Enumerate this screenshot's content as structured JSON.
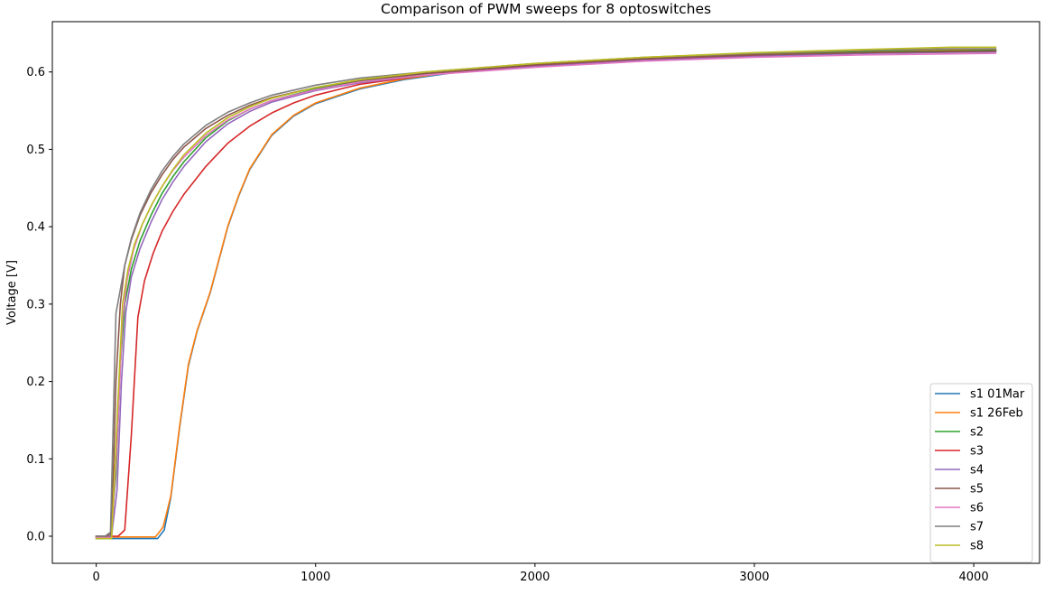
{
  "chart_data": {
    "type": "line",
    "title": "Comparison of PWM sweeps for 8 optoswitches",
    "xlabel": "",
    "ylabel": "Voltage [V]",
    "xlim": [
      -200,
      4300
    ],
    "ylim": [
      -0.035,
      0.665
    ],
    "xticks": [
      0,
      1000,
      2000,
      3000,
      4000
    ],
    "yticks": [
      0.0,
      0.1,
      0.2,
      0.3,
      0.4,
      0.5,
      0.6
    ],
    "ytick_labels": [
      "0.0",
      "0.1",
      "0.2",
      "0.3",
      "0.4",
      "0.5",
      "0.6"
    ],
    "grid": false,
    "legend_position": "lower-right",
    "series": [
      {
        "name": "s1 01Mar",
        "color": "#1f77b4",
        "points": [
          [
            0,
            -0.003
          ],
          [
            280,
            -0.003
          ],
          [
            310,
            0.008
          ],
          [
            340,
            0.05
          ],
          [
            380,
            0.14
          ],
          [
            420,
            0.22
          ],
          [
            460,
            0.265
          ],
          [
            520,
            0.315
          ],
          [
            600,
            0.4
          ],
          [
            650,
            0.44
          ],
          [
            700,
            0.474
          ],
          [
            800,
            0.518
          ],
          [
            900,
            0.543
          ],
          [
            1000,
            0.559
          ],
          [
            1200,
            0.578
          ],
          [
            1400,
            0.59
          ],
          [
            1600,
            0.598
          ],
          [
            2000,
            0.609
          ],
          [
            2500,
            0.617
          ],
          [
            3000,
            0.622
          ],
          [
            3500,
            0.626
          ],
          [
            3900,
            0.628
          ],
          [
            4100,
            0.628
          ]
        ]
      },
      {
        "name": "s1 26Feb",
        "color": "#ff7f0e",
        "points": [
          [
            0,
            -0.001
          ],
          [
            270,
            -0.001
          ],
          [
            305,
            0.012
          ],
          [
            340,
            0.052
          ],
          [
            380,
            0.142
          ],
          [
            420,
            0.222
          ],
          [
            460,
            0.266
          ],
          [
            520,
            0.316
          ],
          [
            600,
            0.401
          ],
          [
            650,
            0.441
          ],
          [
            700,
            0.475
          ],
          [
            800,
            0.519
          ],
          [
            900,
            0.544
          ],
          [
            1000,
            0.56
          ],
          [
            1200,
            0.579
          ],
          [
            1400,
            0.591
          ],
          [
            1600,
            0.599
          ],
          [
            2000,
            0.61
          ],
          [
            2500,
            0.618
          ],
          [
            3000,
            0.623
          ],
          [
            3500,
            0.627
          ],
          [
            3900,
            0.629
          ],
          [
            4100,
            0.629
          ]
        ]
      },
      {
        "name": "s2",
        "color": "#2ca02c",
        "points": [
          [
            0,
            -0.003
          ],
          [
            65,
            -0.003
          ],
          [
            90,
            0.08
          ],
          [
            110,
            0.22
          ],
          [
            130,
            0.3
          ],
          [
            160,
            0.345
          ],
          [
            200,
            0.382
          ],
          [
            250,
            0.415
          ],
          [
            300,
            0.443
          ],
          [
            350,
            0.465
          ],
          [
            400,
            0.484
          ],
          [
            500,
            0.515
          ],
          [
            600,
            0.537
          ],
          [
            700,
            0.552
          ],
          [
            800,
            0.563
          ],
          [
            1000,
            0.578
          ],
          [
            1200,
            0.588
          ],
          [
            1500,
            0.598
          ],
          [
            2000,
            0.609
          ],
          [
            2500,
            0.617
          ],
          [
            3000,
            0.622
          ],
          [
            3500,
            0.626
          ],
          [
            4100,
            0.628
          ]
        ]
      },
      {
        "name": "s3",
        "color": "#d62728",
        "points": [
          [
            0,
            0.0
          ],
          [
            100,
            0.0
          ],
          [
            130,
            0.008
          ],
          [
            160,
            0.13
          ],
          [
            190,
            0.283
          ],
          [
            220,
            0.33
          ],
          [
            260,
            0.366
          ],
          [
            300,
            0.394
          ],
          [
            350,
            0.42
          ],
          [
            400,
            0.442
          ],
          [
            450,
            0.46
          ],
          [
            500,
            0.478
          ],
          [
            600,
            0.508
          ],
          [
            700,
            0.53
          ],
          [
            800,
            0.547
          ],
          [
            900,
            0.56
          ],
          [
            1000,
            0.57
          ],
          [
            1200,
            0.584
          ],
          [
            1500,
            0.596
          ],
          [
            2000,
            0.608
          ],
          [
            2500,
            0.616
          ],
          [
            3000,
            0.621
          ],
          [
            3500,
            0.625
          ],
          [
            4100,
            0.627
          ]
        ]
      },
      {
        "name": "s4",
        "color": "#9467bd",
        "points": [
          [
            0,
            0.0
          ],
          [
            70,
            0.0
          ],
          [
            95,
            0.06
          ],
          [
            115,
            0.2
          ],
          [
            135,
            0.29
          ],
          [
            160,
            0.335
          ],
          [
            200,
            0.372
          ],
          [
            250,
            0.406
          ],
          [
            300,
            0.435
          ],
          [
            350,
            0.458
          ],
          [
            400,
            0.478
          ],
          [
            500,
            0.51
          ],
          [
            600,
            0.533
          ],
          [
            700,
            0.549
          ],
          [
            800,
            0.561
          ],
          [
            1000,
            0.576
          ],
          [
            1200,
            0.586
          ],
          [
            1500,
            0.596
          ],
          [
            2000,
            0.607
          ],
          [
            2500,
            0.615
          ],
          [
            3000,
            0.62
          ],
          [
            3500,
            0.624
          ],
          [
            4100,
            0.626
          ]
        ]
      },
      {
        "name": "s5",
        "color": "#8c564b",
        "points": [
          [
            0,
            0.0
          ],
          [
            45,
            0.0
          ],
          [
            70,
            0.004
          ],
          [
            90,
            0.2
          ],
          [
            110,
            0.3
          ],
          [
            130,
            0.35
          ],
          [
            160,
            0.383
          ],
          [
            200,
            0.415
          ],
          [
            250,
            0.444
          ],
          [
            300,
            0.467
          ],
          [
            350,
            0.487
          ],
          [
            400,
            0.503
          ],
          [
            500,
            0.527
          ],
          [
            600,
            0.544
          ],
          [
            700,
            0.557
          ],
          [
            800,
            0.567
          ],
          [
            1000,
            0.58
          ],
          [
            1200,
            0.589
          ],
          [
            1500,
            0.598
          ],
          [
            2000,
            0.609
          ],
          [
            2500,
            0.617
          ],
          [
            3000,
            0.622
          ],
          [
            3500,
            0.625
          ],
          [
            4100,
            0.627
          ]
        ]
      },
      {
        "name": "s6",
        "color": "#e377c2",
        "points": [
          [
            0,
            -0.002
          ],
          [
            70,
            -0.002
          ],
          [
            95,
            0.12
          ],
          [
            120,
            0.28
          ],
          [
            140,
            0.33
          ],
          [
            170,
            0.37
          ],
          [
            210,
            0.403
          ],
          [
            260,
            0.432
          ],
          [
            300,
            0.452
          ],
          [
            350,
            0.473
          ],
          [
            400,
            0.49
          ],
          [
            500,
            0.518
          ],
          [
            600,
            0.538
          ],
          [
            700,
            0.552
          ],
          [
            800,
            0.563
          ],
          [
            1000,
            0.577
          ],
          [
            1200,
            0.587
          ],
          [
            1500,
            0.596
          ],
          [
            2000,
            0.606
          ],
          [
            2500,
            0.614
          ],
          [
            3000,
            0.619
          ],
          [
            3500,
            0.622
          ],
          [
            4100,
            0.624
          ]
        ]
      },
      {
        "name": "s7",
        "color": "#7f7f7f",
        "points": [
          [
            0,
            0.0
          ],
          [
            40,
            0.0
          ],
          [
            65,
            0.005
          ],
          [
            90,
            0.288
          ],
          [
            130,
            0.35
          ],
          [
            160,
            0.385
          ],
          [
            200,
            0.418
          ],
          [
            250,
            0.448
          ],
          [
            300,
            0.472
          ],
          [
            350,
            0.491
          ],
          [
            400,
            0.507
          ],
          [
            500,
            0.531
          ],
          [
            600,
            0.548
          ],
          [
            700,
            0.56
          ],
          [
            800,
            0.57
          ],
          [
            1000,
            0.583
          ],
          [
            1200,
            0.592
          ],
          [
            1500,
            0.6
          ],
          [
            2000,
            0.611
          ],
          [
            2500,
            0.619
          ],
          [
            3000,
            0.624
          ],
          [
            3500,
            0.628
          ],
          [
            3900,
            0.63
          ],
          [
            4100,
            0.63
          ]
        ]
      },
      {
        "name": "s8",
        "color": "#bcbd22",
        "points": [
          [
            0,
            -0.003
          ],
          [
            70,
            -0.003
          ],
          [
            95,
            0.15
          ],
          [
            120,
            0.3
          ],
          [
            145,
            0.345
          ],
          [
            175,
            0.378
          ],
          [
            210,
            0.403
          ],
          [
            250,
            0.427
          ],
          [
            300,
            0.452
          ],
          [
            350,
            0.474
          ],
          [
            400,
            0.493
          ],
          [
            500,
            0.521
          ],
          [
            600,
            0.541
          ],
          [
            700,
            0.555
          ],
          [
            800,
            0.566
          ],
          [
            1000,
            0.58
          ],
          [
            1200,
            0.59
          ],
          [
            1500,
            0.6
          ],
          [
            2000,
            0.611
          ],
          [
            2500,
            0.619
          ],
          [
            3000,
            0.625
          ],
          [
            3500,
            0.629
          ],
          [
            3900,
            0.632
          ],
          [
            4100,
            0.632
          ]
        ]
      }
    ]
  }
}
